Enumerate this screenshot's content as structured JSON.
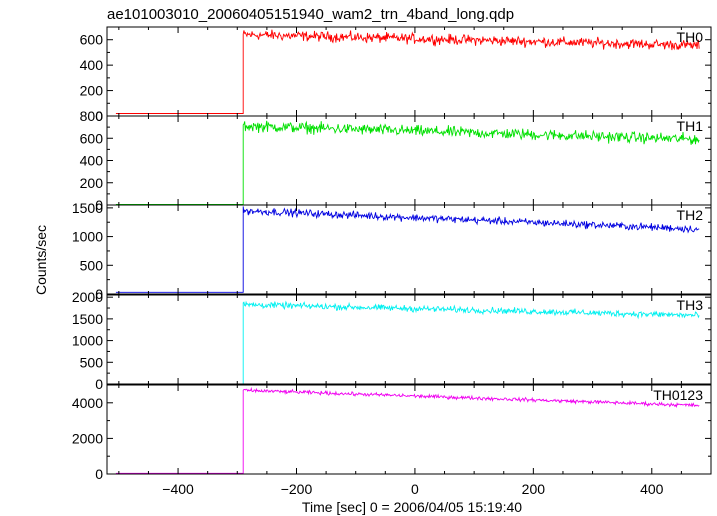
{
  "chart_data": {
    "type": "line",
    "title": "ae101003010_20060405151940_wam2_trn_4band_long.qdp",
    "xlabel": "Time [sec] 0 = 2006/04/05 15:19:40",
    "ylabel": "Counts/sec",
    "xlim": [
      -520,
      500
    ],
    "x_ticks": [
      -400,
      -200,
      0,
      200,
      400
    ],
    "x_tick_labels": [
      "−400",
      "−200",
      "0",
      "200",
      "400"
    ],
    "data_x_range": [
      -505,
      480
    ],
    "step_x": -290,
    "panels": [
      {
        "name": "TH0",
        "color": "#ff0000",
        "ylim": [
          0,
          700
        ],
        "yticks": [
          0,
          200,
          400,
          600
        ],
        "pre_level": 20,
        "post_start": 640,
        "post_end": 555,
        "noise": 28
      },
      {
        "name": "TH1",
        "color": "#00e000",
        "ylim": [
          0,
          800
        ],
        "yticks": [
          0,
          200,
          400,
          600,
          800
        ],
        "pre_level": 5,
        "post_start": 710,
        "post_end": 590,
        "noise": 35
      },
      {
        "name": "TH2",
        "color": "#0000e0",
        "ylim": [
          0,
          1550
        ],
        "yticks": [
          0,
          500,
          1000,
          1500
        ],
        "pre_level": 30,
        "post_start": 1450,
        "post_end": 1130,
        "noise": 45
      },
      {
        "name": "TH3",
        "color": "#00f0f0",
        "ylim": [
          0,
          2050
        ],
        "yticks": [
          0,
          500,
          1000,
          1500,
          2000
        ],
        "pre_level": 0,
        "post_start": 1830,
        "post_end": 1580,
        "noise": 50
      },
      {
        "name": "TH0123",
        "color": "#f000f0",
        "ylim": [
          0,
          5000
        ],
        "yticks": [
          0,
          2000,
          4000
        ],
        "pre_level": 40,
        "post_start": 4700,
        "post_end": 3850,
        "noise": 70
      }
    ]
  }
}
